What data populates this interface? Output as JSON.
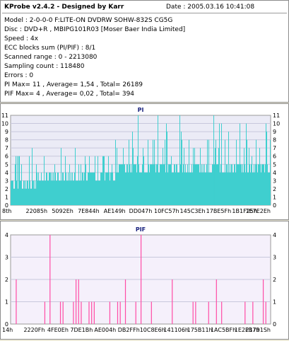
{
  "info": {
    "title": "KProbe v2.4.2 - Designed by Karr",
    "date": "Date : 2005.03.16 10:41:08",
    "lines": [
      "Model : 2-0-0-0 F:LITE-ON DVDRW SOHW-832S  CG5G",
      "Disc : DVD+R , MBIPG101R03 [Moser Baer India Limited]",
      "Speed : 4x",
      "ECC blocks sum (PI/PIF) : 8/1",
      "Scanned range : 0 - 2213080",
      "Sampling count : 118480",
      "Errors : 0",
      "PI Max= 11 , Average= 1,54 , Total= 26189",
      "PIF Max= 4 , Average= 0,02 , Total= 394"
    ]
  },
  "chart_data": [
    {
      "type": "bar",
      "title": "PI",
      "ylim": [
        0,
        11
      ],
      "y_ticks": [
        0,
        1,
        2,
        3,
        4,
        5,
        6,
        7,
        8,
        9,
        10,
        11
      ],
      "x_tick_labels": [
        "8th",
        "22085h",
        "5092Eh",
        "7E844h",
        "AE149h",
        "DD047h",
        "10FC57h",
        "145C3Eh",
        "17BE5Fh",
        "1B1F25h",
        "1E7E2Eh"
      ],
      "grid": true,
      "color": "#3fcfcf",
      "background": "#ebebf6",
      "baseline_levels": [
        2,
        3,
        4
      ],
      "spike_levels": [
        5,
        6,
        7
      ],
      "max_value": 11,
      "segments": [
        {
          "from": 0.0,
          "to": 0.1,
          "base": [
            2,
            3
          ],
          "spike": [
            4,
            7
          ]
        },
        {
          "from": 0.1,
          "to": 0.4,
          "base": [
            3,
            4
          ],
          "spike": [
            5,
            7
          ]
        },
        {
          "from": 0.4,
          "to": 1.0,
          "base": [
            4,
            5
          ],
          "spike": [
            6,
            11
          ]
        }
      ]
    },
    {
      "type": "bar",
      "title": "PIF",
      "ylim": [
        0,
        4
      ],
      "y_ticks": [
        0,
        1,
        2,
        3,
        4
      ],
      "x_tick_labels": [
        "14h",
        "2220Fh",
        "4FE0Eh",
        "7DE1Bh",
        "AE004h",
        "DB2FFh",
        "10C8E6h",
        "141106h",
        "175B11h",
        "1AC5BFh",
        "1E2FB7h",
        "21791Sh"
      ],
      "grid": true,
      "color": "#ff4da6",
      "background": "#f5f0fb",
      "spikes": [
        {
          "x": 0.02,
          "v": 2
        },
        {
          "x": 0.13,
          "v": 1
        },
        {
          "x": 0.15,
          "v": 4
        },
        {
          "x": 0.19,
          "v": 1
        },
        {
          "x": 0.2,
          "v": 1
        },
        {
          "x": 0.24,
          "v": 1
        },
        {
          "x": 0.25,
          "v": 2
        },
        {
          "x": 0.26,
          "v": 2
        },
        {
          "x": 0.27,
          "v": 1
        },
        {
          "x": 0.3,
          "v": 1
        },
        {
          "x": 0.31,
          "v": 1
        },
        {
          "x": 0.32,
          "v": 1
        },
        {
          "x": 0.38,
          "v": 1
        },
        {
          "x": 0.41,
          "v": 1
        },
        {
          "x": 0.42,
          "v": 1
        },
        {
          "x": 0.44,
          "v": 2
        },
        {
          "x": 0.48,
          "v": 1
        },
        {
          "x": 0.5,
          "v": 4
        },
        {
          "x": 0.54,
          "v": 1
        },
        {
          "x": 0.62,
          "v": 2
        },
        {
          "x": 0.7,
          "v": 1
        },
        {
          "x": 0.71,
          "v": 1
        },
        {
          "x": 0.76,
          "v": 1
        },
        {
          "x": 0.79,
          "v": 2
        },
        {
          "x": 0.81,
          "v": 1
        },
        {
          "x": 0.9,
          "v": 1
        },
        {
          "x": 0.93,
          "v": 1
        },
        {
          "x": 0.97,
          "v": 2
        },
        {
          "x": 0.98,
          "v": 1
        }
      ]
    }
  ]
}
